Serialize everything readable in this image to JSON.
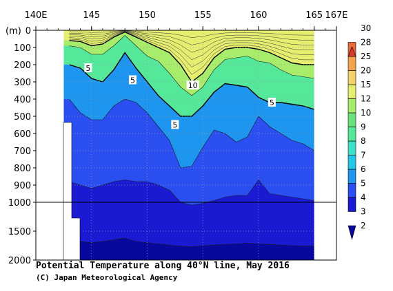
{
  "title": "Potential Temperature along 40°N line, May 2016",
  "credit": "(C) Japan Meteorological Agency",
  "chart_data": {
    "type": "heatmap",
    "title": "Potential Temperature along 40°N line, May 2016",
    "xlabel": "",
    "ylabel": "(m)",
    "xlim": [
      140,
      167
    ],
    "ylim_depth": [
      0,
      2000
    ],
    "x_ticks": [
      {
        "value": 140,
        "label": "140E"
      },
      {
        "value": 145,
        "label": "145"
      },
      {
        "value": 150,
        "label": "150"
      },
      {
        "value": 155,
        "label": "155"
      },
      {
        "value": 160,
        "label": "160"
      },
      {
        "value": 165,
        "label": "165"
      },
      {
        "value": 167,
        "label": "167E"
      }
    ],
    "y_ticks": [
      {
        "value": 0,
        "label": "0"
      },
      {
        "value": 100,
        "label": "100"
      },
      {
        "value": 200,
        "label": "200"
      },
      {
        "value": 300,
        "label": "300"
      },
      {
        "value": 400,
        "label": "400"
      },
      {
        "value": 500,
        "label": "500"
      },
      {
        "value": 600,
        "label": "600"
      },
      {
        "value": 700,
        "label": "700"
      },
      {
        "value": 800,
        "label": "800"
      },
      {
        "value": 900,
        "label": "900"
      },
      {
        "value": 1000,
        "label": "1000"
      },
      {
        "value": 1500,
        "label": "1500"
      },
      {
        "value": 2000,
        "label": "2000"
      }
    ],
    "depth_scale_break": 1000,
    "grid": true,
    "colorbar": {
      "levels": [
        2,
        3,
        4,
        5,
        6,
        7,
        8,
        9,
        10,
        12,
        15,
        20,
        25,
        28,
        30
      ],
      "labels": [
        "2",
        "3",
        "4",
        "5",
        "6",
        "7",
        "8",
        "9",
        "10",
        "12",
        "15",
        "20",
        "25",
        "28",
        "30"
      ],
      "colors": [
        "#08089e",
        "#1a1ad2",
        "#2a4ef0",
        "#1e96f0",
        "#22c8e6",
        "#3ee0c8",
        "#56e89a",
        "#6ee27a",
        "#a8ec6c",
        "#e6ee70",
        "#f4d46a",
        "#f4a44c",
        "#ec6a3a",
        "#dc3a2c"
      ]
    },
    "contour_labels": [
      {
        "value": "5",
        "x": 144.7,
        "depth": 220
      },
      {
        "value": "5",
        "x": 148.7,
        "depth": 290
      },
      {
        "value": "10",
        "x": 154.1,
        "depth": 320
      },
      {
        "value": "5",
        "x": 161.2,
        "depth": 420
      },
      {
        "value": "5",
        "x": 152.5,
        "depth": 550
      }
    ],
    "isotherm_depths": {
      "x": [
        143,
        144,
        145,
        146,
        147,
        148,
        149,
        150,
        151,
        152,
        153,
        154,
        155,
        156,
        157,
        158,
        159,
        160,
        161,
        162,
        163,
        164,
        165
      ],
      "t10": [
        60,
        65,
        90,
        80,
        40,
        10,
        40,
        70,
        100,
        130,
        200,
        300,
        250,
        160,
        110,
        100,
        100,
        110,
        130,
        160,
        190,
        200,
        200
      ],
      "t8": [
        90,
        100,
        140,
        140,
        90,
        30,
        90,
        150,
        180,
        250,
        330,
        380,
        330,
        230,
        170,
        160,
        150,
        180,
        190,
        230,
        260,
        270,
        280
      ],
      "t5": [
        200,
        220,
        280,
        300,
        230,
        130,
        220,
        300,
        380,
        440,
        500,
        500,
        440,
        360,
        310,
        320,
        330,
        390,
        420,
        420,
        430,
        440,
        460
      ],
      "t4": [
        400,
        480,
        520,
        520,
        440,
        400,
        420,
        480,
        560,
        640,
        800,
        790,
        680,
        580,
        600,
        650,
        620,
        500,
        560,
        600,
        640,
        660,
        700
      ],
      "t3": [
        880,
        900,
        920,
        900,
        880,
        870,
        880,
        880,
        900,
        930,
        1000,
        1050,
        1020,
        990,
        970,
        960,
        960,
        870,
        950,
        960,
        970,
        980,
        990
      ],
      "t2": [
        1650,
        1680,
        1700,
        1680,
        1650,
        1620,
        1680,
        1700,
        1720,
        1740,
        1760,
        1770,
        1750,
        1740,
        1730,
        1720,
        1710,
        1720,
        1730,
        1740,
        1750,
        1760,
        1760
      ]
    }
  }
}
